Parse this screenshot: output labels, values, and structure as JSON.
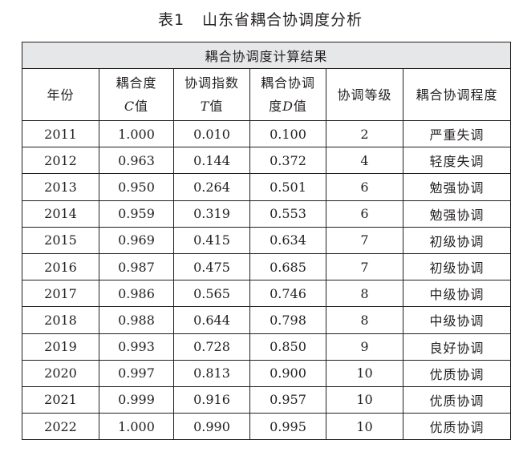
{
  "caption": {
    "label": "表1",
    "text": "山东省耦合协调度分析"
  },
  "table": {
    "title": "耦合协调度计算结果",
    "headers": [
      {
        "line1": "年份",
        "line2_var": "",
        "line2_text": ""
      },
      {
        "line1": "耦合度",
        "line2_var": "C",
        "line2_text": "值"
      },
      {
        "line1": "协调指数",
        "line2_var": "T",
        "line2_text": "值"
      },
      {
        "line1": "耦合协调",
        "line2_pre": "度",
        "line2_var": "D",
        "line2_text": "值"
      },
      {
        "line1": "协调等级",
        "line2_var": "",
        "line2_text": ""
      },
      {
        "line1": "耦合协调程度",
        "line2_var": "",
        "line2_text": ""
      }
    ],
    "rows": [
      [
        "2011",
        "1.000",
        "0.010",
        "0.100",
        "2",
        "严重失调"
      ],
      [
        "2012",
        "0.963",
        "0.144",
        "0.372",
        "4",
        "轻度失调"
      ],
      [
        "2013",
        "0.950",
        "0.264",
        "0.501",
        "6",
        "勉强协调"
      ],
      [
        "2014",
        "0.959",
        "0.319",
        "0.553",
        "6",
        "勉强协调"
      ],
      [
        "2015",
        "0.969",
        "0.415",
        "0.634",
        "7",
        "初级协调"
      ],
      [
        "2016",
        "0.987",
        "0.475",
        "0.685",
        "7",
        "初级协调"
      ],
      [
        "2017",
        "0.986",
        "0.565",
        "0.746",
        "8",
        "中级协调"
      ],
      [
        "2018",
        "0.988",
        "0.644",
        "0.798",
        "8",
        "中级协调"
      ],
      [
        "2019",
        "0.993",
        "0.728",
        "0.850",
        "9",
        "良好协调"
      ],
      [
        "2020",
        "0.997",
        "0.813",
        "0.900",
        "10",
        "优质协调"
      ],
      [
        "2021",
        "0.999",
        "0.916",
        "0.957",
        "10",
        "优质协调"
      ],
      [
        "2022",
        "1.000",
        "0.990",
        "0.995",
        "10",
        "优质协调"
      ]
    ]
  }
}
